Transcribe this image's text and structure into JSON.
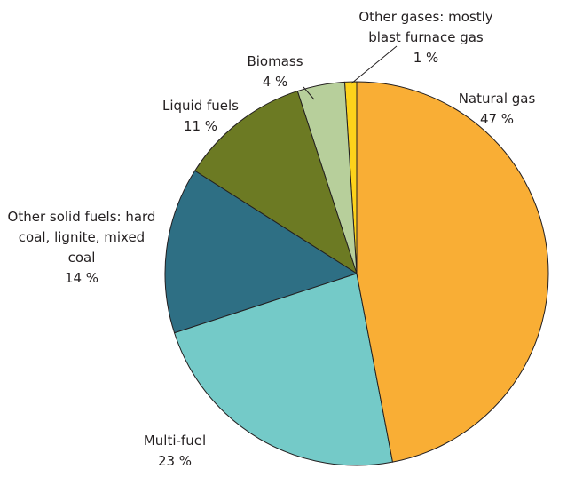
{
  "chart_data": {
    "type": "pie",
    "categories": [
      "Natural gas",
      "Multi-fuel",
      "Other solid fuels: hard coal, lignite, mixed coal",
      "Liquid fuels",
      "Biomass",
      "Other gases: mostly blast furnace gas"
    ],
    "values": [
      47,
      23,
      14,
      11,
      4,
      1
    ],
    "value_labels": [
      "47 %",
      "23 %",
      "14 %",
      "11 %",
      "4 %",
      "1 %"
    ],
    "colors": [
      "#f9ae35",
      "#74cac8",
      "#2e6f84",
      "#6c7a23",
      "#b7cf9b",
      "#fdd21b"
    ]
  }
}
